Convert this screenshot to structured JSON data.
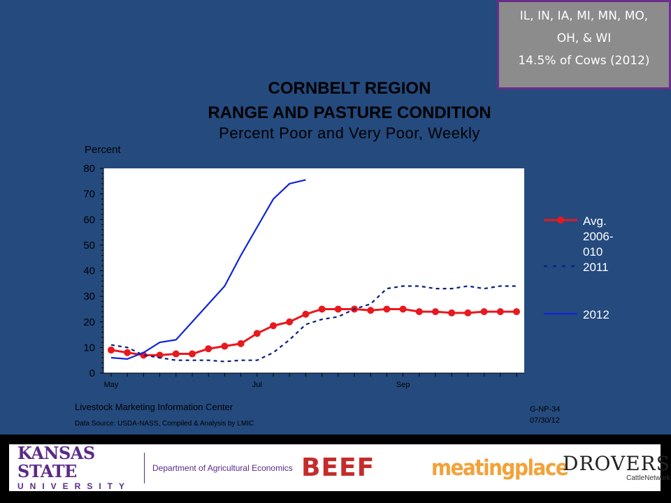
{
  "region_box": {
    "line1": "IL, IN, IA, MI, MN, MO,",
    "line2": "OH, & WI",
    "line3": "14.5% of Cows (2012)"
  },
  "chart_data": {
    "type": "line",
    "title": "CORNBELT REGION",
    "subtitle": "RANGE AND PASTURE CONDITION",
    "subtitle2": "Percent Poor and Very Poor, Weekly",
    "ylabel": "Percent",
    "ylim": [
      0,
      80
    ],
    "yticks": [
      0,
      10,
      20,
      30,
      40,
      50,
      60,
      70,
      80
    ],
    "xtick_labels": [
      "May",
      "Jul",
      "Sep"
    ],
    "xtick_weeks": [
      1,
      10,
      19
    ],
    "n_weeks": 26,
    "legend_position": "right",
    "series": [
      {
        "name": "Avg. 2006-010",
        "name_lines": [
          "Avg.",
          "2006-",
          "010"
        ],
        "style": "solid-markers",
        "color": "#e8191e",
        "values": [
          9,
          8,
          7,
          7,
          7.5,
          7.5,
          9.5,
          10.5,
          11.5,
          15.5,
          18.5,
          20,
          23,
          25,
          25,
          25,
          24.5,
          25,
          25,
          24,
          24,
          23.5,
          23.5,
          24,
          24,
          24
        ]
      },
      {
        "name": "2011",
        "name_lines": [
          "2011"
        ],
        "style": "dashed",
        "color": "#0a1f7a",
        "values": [
          11,
          10,
          7,
          6,
          5,
          5,
          5,
          4.5,
          5,
          5,
          8,
          13,
          19,
          21,
          22,
          25,
          27,
          33,
          34,
          34,
          33,
          33,
          34,
          33,
          34,
          34
        ]
      },
      {
        "name": "2012",
        "name_lines": [
          "2012"
        ],
        "style": "solid",
        "color": "#1024d8",
        "values": [
          6,
          5.5,
          8,
          12,
          13,
          20,
          27,
          34,
          46,
          57,
          68,
          74,
          75.5
        ]
      }
    ]
  },
  "notes": {
    "lmic": "Livestock Marketing Information Center",
    "source": "Data Source:  USDA-NASS, Compiled & Analysis by LMIC",
    "code1": "G-NP-34",
    "code2": "07/30/12"
  },
  "footer": {
    "ksu_name": "KANSAS STATE",
    "ksu_univ": "UNIVERSITY",
    "dept": "Department of Agricultural Economics",
    "beef": "BEEF",
    "meatingplace": "meatingplace",
    "drovers": "DROVERS",
    "drovers_sub": "CattleNetwork"
  }
}
